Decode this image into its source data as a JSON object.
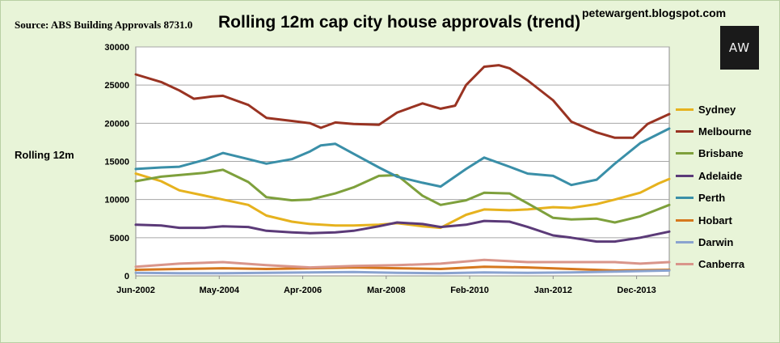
{
  "header": {
    "source": "Source: ABS Building Approvals 8731.0",
    "site": "petewargent.blogspot.com",
    "logo_text": "AW"
  },
  "chart_data": {
    "type": "line",
    "title": "Rolling 12m cap city house approvals (trend)",
    "ylabel": "Rolling 12m",
    "xlabel": "",
    "ylim": [
      0,
      30000
    ],
    "yticks": [
      "0",
      "5000",
      "10000",
      "15000",
      "20000",
      "25000",
      "30000"
    ],
    "xlim": [
      "2002-06",
      "2014-09"
    ],
    "xticks": [
      {
        "date": "2002-06",
        "label": "Jun-2002"
      },
      {
        "date": "2004-05",
        "label": "May-2004"
      },
      {
        "date": "2006-04",
        "label": "Apr-2006"
      },
      {
        "date": "2008-03",
        "label": "Mar-2008"
      },
      {
        "date": "2010-02",
        "label": "Feb-2010"
      },
      {
        "date": "2012-01",
        "label": "Jan-2012"
      },
      {
        "date": "2013-12",
        "label": "Dec-2013"
      }
    ],
    "grid": "horizontal",
    "legend_position": "right",
    "series": [
      {
        "name": "Sydney",
        "color": "#e6b21e",
        "points": [
          [
            "2002-06",
            13400
          ],
          [
            "2003-01",
            12400
          ],
          [
            "2003-06",
            11200
          ],
          [
            "2004-01",
            10500
          ],
          [
            "2004-06",
            10000
          ],
          [
            "2005-01",
            9300
          ],
          [
            "2005-06",
            7900
          ],
          [
            "2006-01",
            7100
          ],
          [
            "2006-06",
            6800
          ],
          [
            "2007-01",
            6600
          ],
          [
            "2007-06",
            6600
          ],
          [
            "2008-01",
            6700
          ],
          [
            "2008-06",
            6900
          ],
          [
            "2009-01",
            6500
          ],
          [
            "2009-06",
            6300
          ],
          [
            "2010-01",
            8000
          ],
          [
            "2010-06",
            8700
          ],
          [
            "2011-01",
            8600
          ],
          [
            "2011-06",
            8700
          ],
          [
            "2012-01",
            9000
          ],
          [
            "2012-06",
            8900
          ],
          [
            "2013-01",
            9400
          ],
          [
            "2013-06",
            10000
          ],
          [
            "2014-01",
            10900
          ],
          [
            "2014-06",
            12100
          ],
          [
            "2014-09",
            12700
          ]
        ]
      },
      {
        "name": "Melbourne",
        "color": "#993322",
        "points": [
          [
            "2002-06",
            26400
          ],
          [
            "2003-01",
            25400
          ],
          [
            "2003-06",
            24300
          ],
          [
            "2003-10",
            23200
          ],
          [
            "2004-03",
            23500
          ],
          [
            "2004-06",
            23600
          ],
          [
            "2005-01",
            22400
          ],
          [
            "2005-06",
            20700
          ],
          [
            "2006-01",
            20300
          ],
          [
            "2006-06",
            20000
          ],
          [
            "2006-09",
            19400
          ],
          [
            "2007-01",
            20100
          ],
          [
            "2007-06",
            19900
          ],
          [
            "2008-01",
            19800
          ],
          [
            "2008-06",
            21400
          ],
          [
            "2009-01",
            22600
          ],
          [
            "2009-06",
            21900
          ],
          [
            "2009-10",
            22300
          ],
          [
            "2010-01",
            25000
          ],
          [
            "2010-06",
            27400
          ],
          [
            "2010-10",
            27600
          ],
          [
            "2011-01",
            27200
          ],
          [
            "2011-06",
            25600
          ],
          [
            "2012-01",
            23000
          ],
          [
            "2012-06",
            20200
          ],
          [
            "2013-01",
            18800
          ],
          [
            "2013-06",
            18100
          ],
          [
            "2013-11",
            18100
          ],
          [
            "2014-03",
            19900
          ],
          [
            "2014-09",
            21200
          ]
        ]
      },
      {
        "name": "Brisbane",
        "color": "#7ea03c",
        "points": [
          [
            "2002-06",
            12400
          ],
          [
            "2003-01",
            13000
          ],
          [
            "2004-01",
            13500
          ],
          [
            "2004-06",
            13900
          ],
          [
            "2005-01",
            12300
          ],
          [
            "2005-06",
            10300
          ],
          [
            "2006-01",
            9900
          ],
          [
            "2006-06",
            10000
          ],
          [
            "2007-01",
            10800
          ],
          [
            "2007-06",
            11600
          ],
          [
            "2008-01",
            13100
          ],
          [
            "2008-06",
            13200
          ],
          [
            "2009-01",
            10500
          ],
          [
            "2009-06",
            9300
          ],
          [
            "2010-01",
            9900
          ],
          [
            "2010-06",
            10900
          ],
          [
            "2011-01",
            10800
          ],
          [
            "2011-06",
            9500
          ],
          [
            "2012-01",
            7600
          ],
          [
            "2012-06",
            7400
          ],
          [
            "2013-01",
            7500
          ],
          [
            "2013-06",
            7000
          ],
          [
            "2014-01",
            7800
          ],
          [
            "2014-09",
            9300
          ]
        ]
      },
      {
        "name": "Adelaide",
        "color": "#5b3a78",
        "points": [
          [
            "2002-06",
            6700
          ],
          [
            "2003-01",
            6600
          ],
          [
            "2003-06",
            6300
          ],
          [
            "2004-01",
            6300
          ],
          [
            "2004-06",
            6500
          ],
          [
            "2005-01",
            6400
          ],
          [
            "2005-06",
            5900
          ],
          [
            "2006-01",
            5700
          ],
          [
            "2006-06",
            5600
          ],
          [
            "2007-01",
            5700
          ],
          [
            "2007-06",
            5900
          ],
          [
            "2008-01",
            6500
          ],
          [
            "2008-06",
            7000
          ],
          [
            "2009-01",
            6800
          ],
          [
            "2009-06",
            6400
          ],
          [
            "2010-01",
            6700
          ],
          [
            "2010-06",
            7200
          ],
          [
            "2011-01",
            7100
          ],
          [
            "2011-06",
            6400
          ],
          [
            "2012-01",
            5300
          ],
          [
            "2012-06",
            5000
          ],
          [
            "2013-01",
            4500
          ],
          [
            "2013-06",
            4500
          ],
          [
            "2014-01",
            5000
          ],
          [
            "2014-09",
            5800
          ]
        ]
      },
      {
        "name": "Perth",
        "color": "#3a8fa8",
        "points": [
          [
            "2002-06",
            14000
          ],
          [
            "2003-01",
            14200
          ],
          [
            "2003-06",
            14300
          ],
          [
            "2004-01",
            15200
          ],
          [
            "2004-06",
            16100
          ],
          [
            "2005-01",
            15300
          ],
          [
            "2005-06",
            14700
          ],
          [
            "2006-01",
            15300
          ],
          [
            "2006-06",
            16300
          ],
          [
            "2006-09",
            17100
          ],
          [
            "2007-01",
            17300
          ],
          [
            "2007-06",
            16000
          ],
          [
            "2008-01",
            14200
          ],
          [
            "2008-06",
            13000
          ],
          [
            "2009-01",
            12200
          ],
          [
            "2009-06",
            11700
          ],
          [
            "2010-01",
            14000
          ],
          [
            "2010-06",
            15500
          ],
          [
            "2011-01",
            14300
          ],
          [
            "2011-06",
            13400
          ],
          [
            "2012-01",
            13100
          ],
          [
            "2012-06",
            11900
          ],
          [
            "2013-01",
            12600
          ],
          [
            "2013-06",
            14700
          ],
          [
            "2014-01",
            17400
          ],
          [
            "2014-09",
            19300
          ]
        ]
      },
      {
        "name": "Hobart",
        "color": "#d6781e",
        "points": [
          [
            "2002-06",
            800
          ],
          [
            "2003-06",
            900
          ],
          [
            "2004-06",
            1000
          ],
          [
            "2005-06",
            900
          ],
          [
            "2006-06",
            1000
          ],
          [
            "2007-06",
            1100
          ],
          [
            "2008-06",
            1000
          ],
          [
            "2009-06",
            900
          ],
          [
            "2010-06",
            1200
          ],
          [
            "2011-06",
            1100
          ],
          [
            "2012-06",
            900
          ],
          [
            "2013-06",
            700
          ],
          [
            "2014-09",
            800
          ]
        ]
      },
      {
        "name": "Darwin",
        "color": "#8aa3cf",
        "points": [
          [
            "2002-06",
            400
          ],
          [
            "2003-06",
            350
          ],
          [
            "2004-06",
            350
          ],
          [
            "2005-06",
            400
          ],
          [
            "2006-06",
            450
          ],
          [
            "2007-06",
            500
          ],
          [
            "2008-06",
            400
          ],
          [
            "2009-06",
            350
          ],
          [
            "2010-06",
            450
          ],
          [
            "2011-06",
            400
          ],
          [
            "2012-06",
            450
          ],
          [
            "2013-06",
            550
          ],
          [
            "2014-09",
            700
          ]
        ]
      },
      {
        "name": "Canberra",
        "color": "#d9958a",
        "points": [
          [
            "2002-06",
            1200
          ],
          [
            "2003-06",
            1600
          ],
          [
            "2004-06",
            1800
          ],
          [
            "2005-06",
            1400
          ],
          [
            "2006-06",
            1100
          ],
          [
            "2007-06",
            1300
          ],
          [
            "2008-06",
            1400
          ],
          [
            "2009-06",
            1600
          ],
          [
            "2010-06",
            2100
          ],
          [
            "2011-06",
            1800
          ],
          [
            "2012-06",
            1800
          ],
          [
            "2013-06",
            1800
          ],
          [
            "2014-01",
            1600
          ],
          [
            "2014-09",
            1800
          ]
        ]
      }
    ]
  }
}
